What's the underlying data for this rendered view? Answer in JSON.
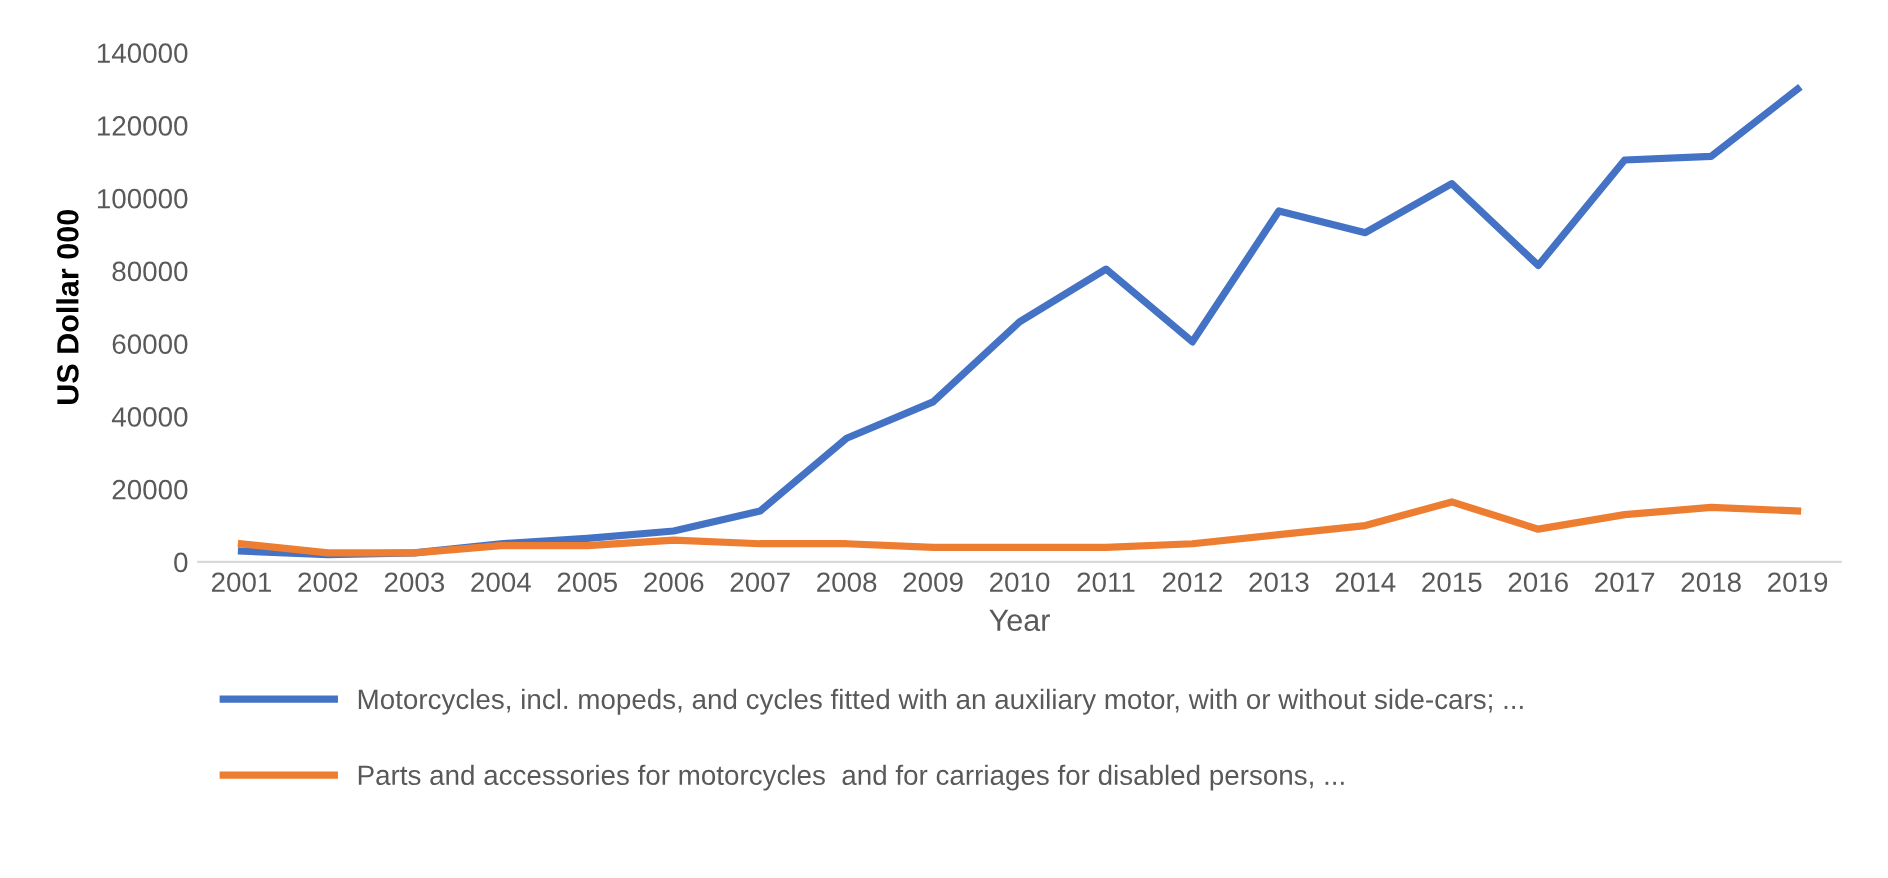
{
  "chart_data": {
    "type": "line",
    "xlabel": "Year",
    "ylabel": "US Dollar 000",
    "categories": [
      "2001",
      "2002",
      "2003",
      "2004",
      "2005",
      "2006",
      "2007",
      "2008",
      "2009",
      "2010",
      "2011",
      "2012",
      "2013",
      "2014",
      "2015",
      "2016",
      "2017",
      "2018",
      "2019"
    ],
    "ylim": [
      0,
      140000
    ],
    "yticks": [
      0,
      20000,
      40000,
      60000,
      80000,
      100000,
      120000,
      140000
    ],
    "grid": false,
    "legend": "bottom",
    "series": [
      {
        "name": "Motorcycles, incl. mopeds, and cycles fitted with an auxiliary motor, with or without side-cars; ...",
        "color": "#4472c4",
        "values": [
          3000,
          2000,
          2500,
          5000,
          6500,
          8500,
          14000,
          34000,
          44000,
          66000,
          80500,
          60500,
          96500,
          90500,
          104000,
          81500,
          110500,
          111500,
          130000
        ]
      },
      {
        "name": "Parts and accessories for motorcycles  and for carriages for disabled persons, ...",
        "color": "#ed7d31",
        "values": [
          5000,
          2500,
          2500,
          4500,
          4500,
          6000,
          5000,
          5000,
          4000,
          4000,
          4000,
          5000,
          7500,
          10000,
          16500,
          9000,
          13000,
          15000,
          14000
        ]
      }
    ]
  }
}
